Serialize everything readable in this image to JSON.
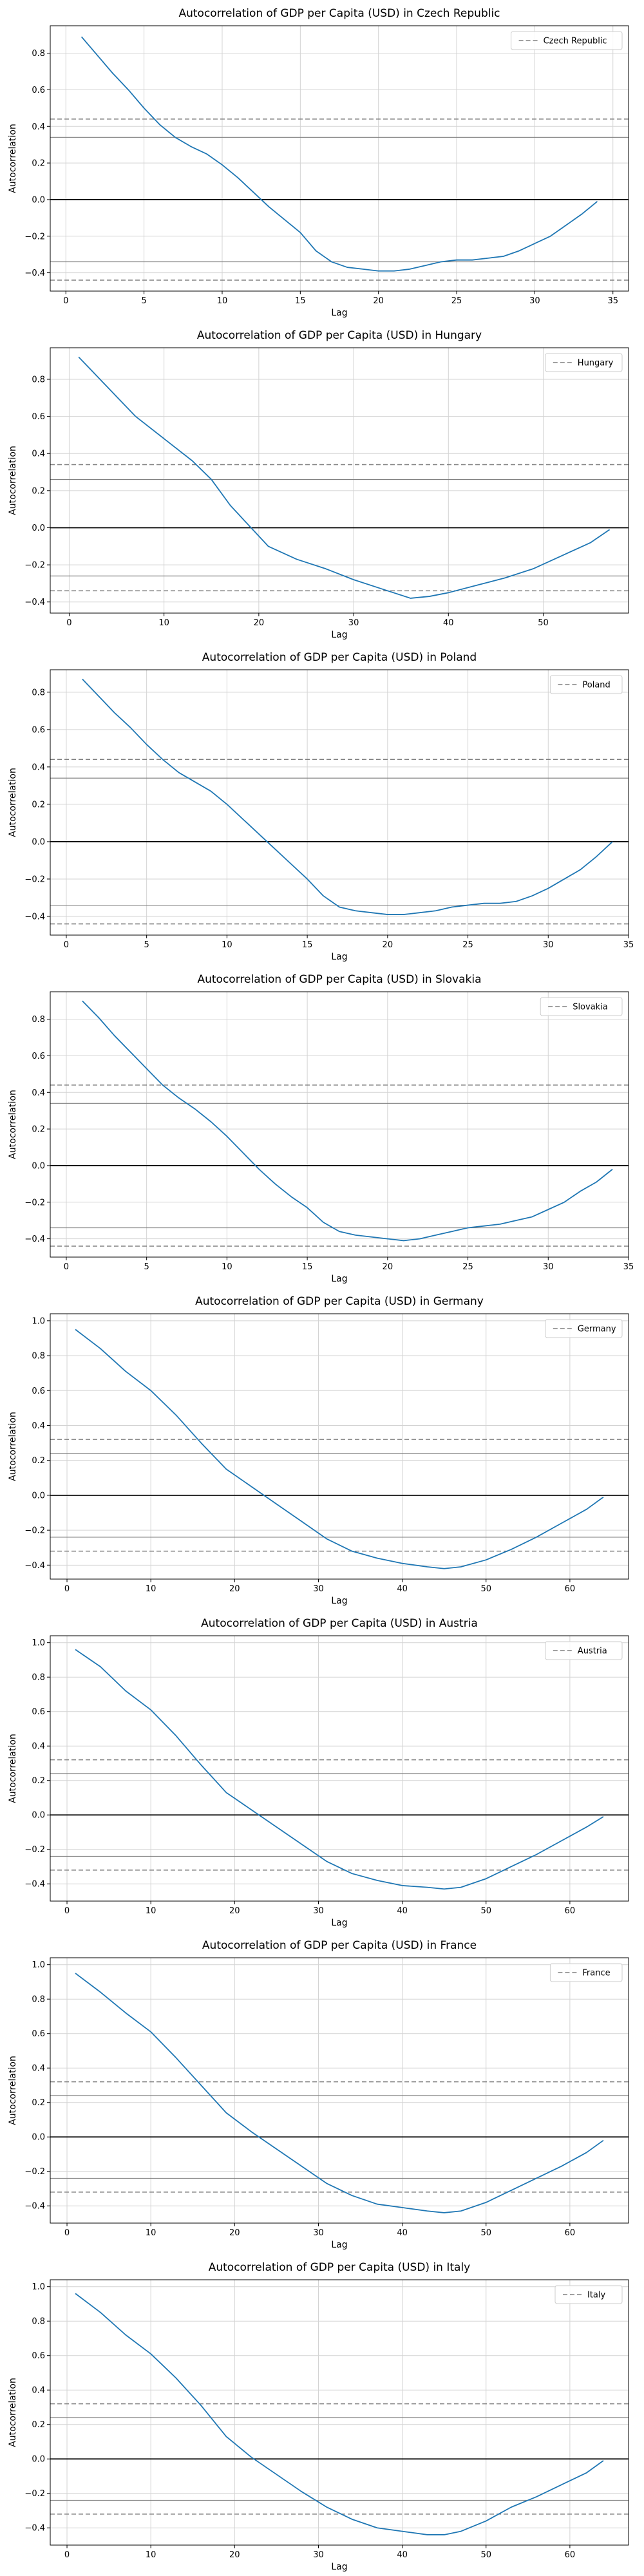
{
  "chart_data": [
    {
      "type": "line",
      "title": "Autocorrelation of GDP per Capita (USD) in Czech Republic",
      "xlabel": "Lag",
      "ylabel": "Autocorrelation",
      "xlim": [
        -1,
        36
      ],
      "ylim": [
        -0.5,
        0.95
      ],
      "xticks": [
        0,
        5,
        10,
        15,
        20,
        25,
        30,
        35
      ],
      "yticks": [
        -0.4,
        -0.2,
        0.0,
        0.2,
        0.4,
        0.6,
        0.8
      ],
      "ytick_labels": [
        "−0.4",
        "−0.2",
        "0.0",
        "0.2",
        "0.4",
        "0.6",
        "0.8"
      ],
      "grid": true,
      "legend": {
        "placement": "top-right",
        "entries": [
          "Czech Republic"
        ]
      },
      "reference_lines": {
        "dashed": [
          0.44,
          -0.44
        ],
        "solid": [
          0.0,
          0.34,
          -0.34
        ]
      },
      "series": [
        {
          "x": [
            1,
            2,
            3,
            4,
            5,
            6,
            7,
            8,
            9,
            10,
            11,
            12,
            13,
            14,
            15,
            16,
            17,
            18,
            19,
            20,
            21,
            22,
            23,
            24,
            25,
            26,
            27,
            28,
            29,
            30,
            31,
            32,
            33,
            34
          ],
          "values": [
            0.89,
            0.79,
            0.69,
            0.6,
            0.5,
            0.41,
            0.34,
            0.29,
            0.25,
            0.19,
            0.12,
            0.04,
            -0.04,
            -0.11,
            -0.18,
            -0.28,
            -0.34,
            -0.37,
            -0.38,
            -0.39,
            -0.39,
            -0.38,
            -0.36,
            -0.34,
            -0.33,
            -0.33,
            -0.32,
            -0.31,
            -0.28,
            -0.24,
            -0.2,
            -0.14,
            -0.08,
            -0.01
          ]
        }
      ]
    },
    {
      "type": "line",
      "title": "Autocorrelation of GDP per Capita (USD) in Hungary",
      "xlabel": "Lag",
      "ylabel": "Autocorrelation",
      "xlim": [
        -2,
        59
      ],
      "ylim": [
        -0.46,
        0.97
      ],
      "xticks": [
        0,
        10,
        20,
        30,
        40,
        50
      ],
      "yticks": [
        -0.4,
        -0.2,
        0.0,
        0.2,
        0.4,
        0.6,
        0.8
      ],
      "ytick_labels": [
        "−0.4",
        "−0.2",
        "0.0",
        "0.2",
        "0.4",
        "0.6",
        "0.8"
      ],
      "grid": true,
      "legend": {
        "placement": "top-right",
        "entries": [
          "Hungary"
        ]
      },
      "reference_lines": {
        "dashed": [
          0.34,
          -0.34
        ],
        "solid": [
          0.0,
          0.26,
          -0.26
        ]
      },
      "series": [
        {
          "x": [
            1,
            4,
            7,
            10,
            13,
            15,
            17,
            19,
            21,
            24,
            27,
            30,
            33,
            36,
            38,
            40,
            43,
            46,
            49,
            52,
            55,
            57
          ],
          "values": [
            0.92,
            0.76,
            0.6,
            0.48,
            0.36,
            0.26,
            0.12,
            0.01,
            -0.1,
            -0.17,
            -0.22,
            -0.28,
            -0.33,
            -0.38,
            -0.37,
            -0.35,
            -0.31,
            -0.27,
            -0.22,
            -0.15,
            -0.08,
            -0.01
          ]
        }
      ]
    },
    {
      "type": "line",
      "title": "Autocorrelation of GDP per Capita (USD) in Poland",
      "xlabel": "Lag",
      "ylabel": "Autocorrelation",
      "xlim": [
        -1,
        35
      ],
      "ylim": [
        -0.5,
        0.92
      ],
      "xticks": [
        0,
        5,
        10,
        15,
        20,
        25,
        30,
        35
      ],
      "yticks": [
        -0.4,
        -0.2,
        0.0,
        0.2,
        0.4,
        0.6,
        0.8
      ],
      "ytick_labels": [
        "−0.4",
        "−0.2",
        "0.0",
        "0.2",
        "0.4",
        "0.6",
        "0.8"
      ],
      "grid": true,
      "legend": {
        "placement": "top-right",
        "entries": [
          "Poland"
        ]
      },
      "reference_lines": {
        "dashed": [
          0.44,
          -0.44
        ],
        "solid": [
          0.0,
          0.34,
          -0.34
        ]
      },
      "series": [
        {
          "x": [
            1,
            2,
            3,
            4,
            5,
            6,
            7,
            8,
            9,
            10,
            11,
            12,
            13,
            14,
            15,
            16,
            17,
            18,
            19,
            20,
            21,
            22,
            23,
            24,
            25,
            26,
            27,
            28,
            29,
            30,
            31,
            32,
            33,
            34
          ],
          "values": [
            0.87,
            0.78,
            0.69,
            0.61,
            0.52,
            0.44,
            0.37,
            0.32,
            0.27,
            0.2,
            0.12,
            0.04,
            -0.04,
            -0.12,
            -0.2,
            -0.29,
            -0.35,
            -0.37,
            -0.38,
            -0.39,
            -0.39,
            -0.38,
            -0.37,
            -0.35,
            -0.34,
            -0.33,
            -0.33,
            -0.32,
            -0.29,
            -0.25,
            -0.2,
            -0.15,
            -0.08,
            0.0
          ]
        }
      ]
    },
    {
      "type": "line",
      "title": "Autocorrelation of GDP per Capita (USD) in Slovakia",
      "xlabel": "Lag",
      "ylabel": "Autocorrelation",
      "xlim": [
        -1,
        35
      ],
      "ylim": [
        -0.5,
        0.95
      ],
      "xticks": [
        0,
        5,
        10,
        15,
        20,
        25,
        30,
        35
      ],
      "yticks": [
        -0.4,
        -0.2,
        0.0,
        0.2,
        0.4,
        0.6,
        0.8
      ],
      "ytick_labels": [
        "−0.4",
        "−0.2",
        "0.0",
        "0.2",
        "0.4",
        "0.6",
        "0.8"
      ],
      "grid": true,
      "legend": {
        "placement": "top-right",
        "entries": [
          "Slovakia"
        ]
      },
      "reference_lines": {
        "dashed": [
          0.44,
          -0.44
        ],
        "solid": [
          0.0,
          0.34,
          -0.34
        ]
      },
      "series": [
        {
          "x": [
            1,
            2,
            3,
            4,
            5,
            6,
            7,
            8,
            9,
            10,
            11,
            12,
            13,
            14,
            15,
            16,
            17,
            18,
            19,
            20,
            21,
            22,
            23,
            24,
            25,
            26,
            27,
            28,
            29,
            30,
            31,
            32,
            33,
            34
          ],
          "values": [
            0.9,
            0.81,
            0.71,
            0.62,
            0.53,
            0.44,
            0.37,
            0.31,
            0.24,
            0.16,
            0.07,
            -0.02,
            -0.1,
            -0.17,
            -0.23,
            -0.31,
            -0.36,
            -0.38,
            -0.39,
            -0.4,
            -0.41,
            -0.4,
            -0.38,
            -0.36,
            -0.34,
            -0.33,
            -0.32,
            -0.3,
            -0.28,
            -0.24,
            -0.2,
            -0.14,
            -0.09,
            -0.02
          ]
        }
      ]
    },
    {
      "type": "line",
      "title": "Autocorrelation of GDP per Capita (USD) in Germany",
      "xlabel": "Lag",
      "ylabel": "Autocorrelation",
      "xlim": [
        -2,
        67
      ],
      "ylim": [
        -0.48,
        1.04
      ],
      "xticks": [
        0,
        10,
        20,
        30,
        40,
        50,
        60
      ],
      "yticks": [
        -0.4,
        -0.2,
        0.0,
        0.2,
        0.4,
        0.6,
        0.8,
        1.0
      ],
      "ytick_labels": [
        "−0.4",
        "−0.2",
        "0.0",
        "0.2",
        "0.4",
        "0.6",
        "0.8",
        "1.0"
      ],
      "grid": true,
      "legend": {
        "placement": "top-right",
        "entries": [
          "Germany"
        ]
      },
      "reference_lines": {
        "dashed": [
          0.32,
          -0.32
        ],
        "solid": [
          0.0,
          0.24,
          -0.24
        ]
      },
      "series": [
        {
          "x": [
            1,
            4,
            7,
            10,
            13,
            16,
            19,
            22,
            25,
            28,
            31,
            34,
            37,
            40,
            43,
            45,
            47,
            50,
            53,
            56,
            59,
            62,
            64
          ],
          "values": [
            0.95,
            0.84,
            0.71,
            0.6,
            0.46,
            0.3,
            0.15,
            0.05,
            -0.05,
            -0.15,
            -0.25,
            -0.32,
            -0.36,
            -0.39,
            -0.41,
            -0.42,
            -0.41,
            -0.37,
            -0.31,
            -0.24,
            -0.16,
            -0.08,
            -0.01
          ]
        }
      ]
    },
    {
      "type": "line",
      "title": "Autocorrelation of GDP per Capita (USD) in Austria",
      "xlabel": "Lag",
      "ylabel": "Autocorrelation",
      "xlim": [
        -2,
        67
      ],
      "ylim": [
        -0.5,
        1.04
      ],
      "xticks": [
        0,
        10,
        20,
        30,
        40,
        50,
        60
      ],
      "yticks": [
        -0.4,
        -0.2,
        0.0,
        0.2,
        0.4,
        0.6,
        0.8,
        1.0
      ],
      "ytick_labels": [
        "−0.4",
        "−0.2",
        "0.0",
        "0.2",
        "0.4",
        "0.6",
        "0.8",
        "1.0"
      ],
      "grid": true,
      "legend": {
        "placement": "top-right",
        "entries": [
          "Austria"
        ]
      },
      "reference_lines": {
        "dashed": [
          0.32,
          -0.32
        ],
        "solid": [
          0.0,
          0.24,
          -0.24
        ]
      },
      "series": [
        {
          "x": [
            1,
            4,
            7,
            10,
            13,
            16,
            19,
            22,
            25,
            28,
            31,
            34,
            37,
            40,
            43,
            45,
            47,
            50,
            53,
            56,
            59,
            62,
            64
          ],
          "values": [
            0.96,
            0.86,
            0.72,
            0.61,
            0.46,
            0.29,
            0.13,
            0.03,
            -0.07,
            -0.17,
            -0.27,
            -0.34,
            -0.38,
            -0.41,
            -0.42,
            -0.43,
            -0.42,
            -0.37,
            -0.3,
            -0.23,
            -0.15,
            -0.07,
            -0.01
          ]
        }
      ]
    },
    {
      "type": "line",
      "title": "Autocorrelation of GDP per Capita (USD) in France",
      "xlabel": "Lag",
      "ylabel": "Autocorrelation",
      "xlim": [
        -2,
        67
      ],
      "ylim": [
        -0.5,
        1.04
      ],
      "xticks": [
        0,
        10,
        20,
        30,
        40,
        50,
        60
      ],
      "yticks": [
        -0.4,
        -0.2,
        0.0,
        0.2,
        0.4,
        0.6,
        0.8,
        1.0
      ],
      "ytick_labels": [
        "−0.4",
        "−0.2",
        "0.0",
        "0.2",
        "0.4",
        "0.6",
        "0.8",
        "1.0"
      ],
      "grid": true,
      "legend": {
        "placement": "top-right",
        "entries": [
          "France"
        ]
      },
      "reference_lines": {
        "dashed": [
          0.32,
          -0.32
        ],
        "solid": [
          0.0,
          0.24,
          -0.24
        ]
      },
      "series": [
        {
          "x": [
            1,
            4,
            7,
            10,
            13,
            16,
            19,
            22,
            25,
            28,
            31,
            34,
            37,
            40,
            43,
            45,
            47,
            50,
            53,
            56,
            59,
            62,
            64
          ],
          "values": [
            0.95,
            0.84,
            0.72,
            0.61,
            0.46,
            0.3,
            0.14,
            0.03,
            -0.07,
            -0.17,
            -0.27,
            -0.34,
            -0.39,
            -0.41,
            -0.43,
            -0.44,
            -0.43,
            -0.38,
            -0.31,
            -0.24,
            -0.17,
            -0.09,
            -0.02
          ]
        }
      ]
    },
    {
      "type": "line",
      "title": "Autocorrelation of GDP per Capita (USD) in Italy",
      "xlabel": "Lag",
      "ylabel": "Autocorrelation",
      "xlim": [
        -2,
        67
      ],
      "ylim": [
        -0.5,
        1.04
      ],
      "xticks": [
        0,
        10,
        20,
        30,
        40,
        50,
        60
      ],
      "yticks": [
        -0.4,
        -0.2,
        0.0,
        0.2,
        0.4,
        0.6,
        0.8,
        1.0
      ],
      "ytick_labels": [
        "−0.4",
        "−0.2",
        "0.0",
        "0.2",
        "0.4",
        "0.6",
        "0.8",
        "1.0"
      ],
      "grid": true,
      "legend": {
        "placement": "top-right",
        "entries": [
          "Italy"
        ]
      },
      "reference_lines": {
        "dashed": [
          0.32,
          -0.32
        ],
        "solid": [
          0.0,
          0.24,
          -0.24
        ]
      },
      "series": [
        {
          "x": [
            1,
            4,
            7,
            10,
            13,
            16,
            19,
            22,
            25,
            28,
            31,
            34,
            37,
            40,
            43,
            45,
            47,
            50,
            53,
            56,
            59,
            62,
            64
          ],
          "values": [
            0.96,
            0.85,
            0.72,
            0.61,
            0.47,
            0.31,
            0.13,
            0.01,
            -0.09,
            -0.19,
            -0.28,
            -0.35,
            -0.4,
            -0.42,
            -0.44,
            -0.44,
            -0.42,
            -0.36,
            -0.28,
            -0.22,
            -0.15,
            -0.08,
            -0.01
          ]
        }
      ]
    }
  ],
  "colors": {
    "line": "#1f77b4",
    "reference": "#808080",
    "zero_line": "#000000",
    "grid": "#d3d3d3",
    "axes": "#000000"
  }
}
